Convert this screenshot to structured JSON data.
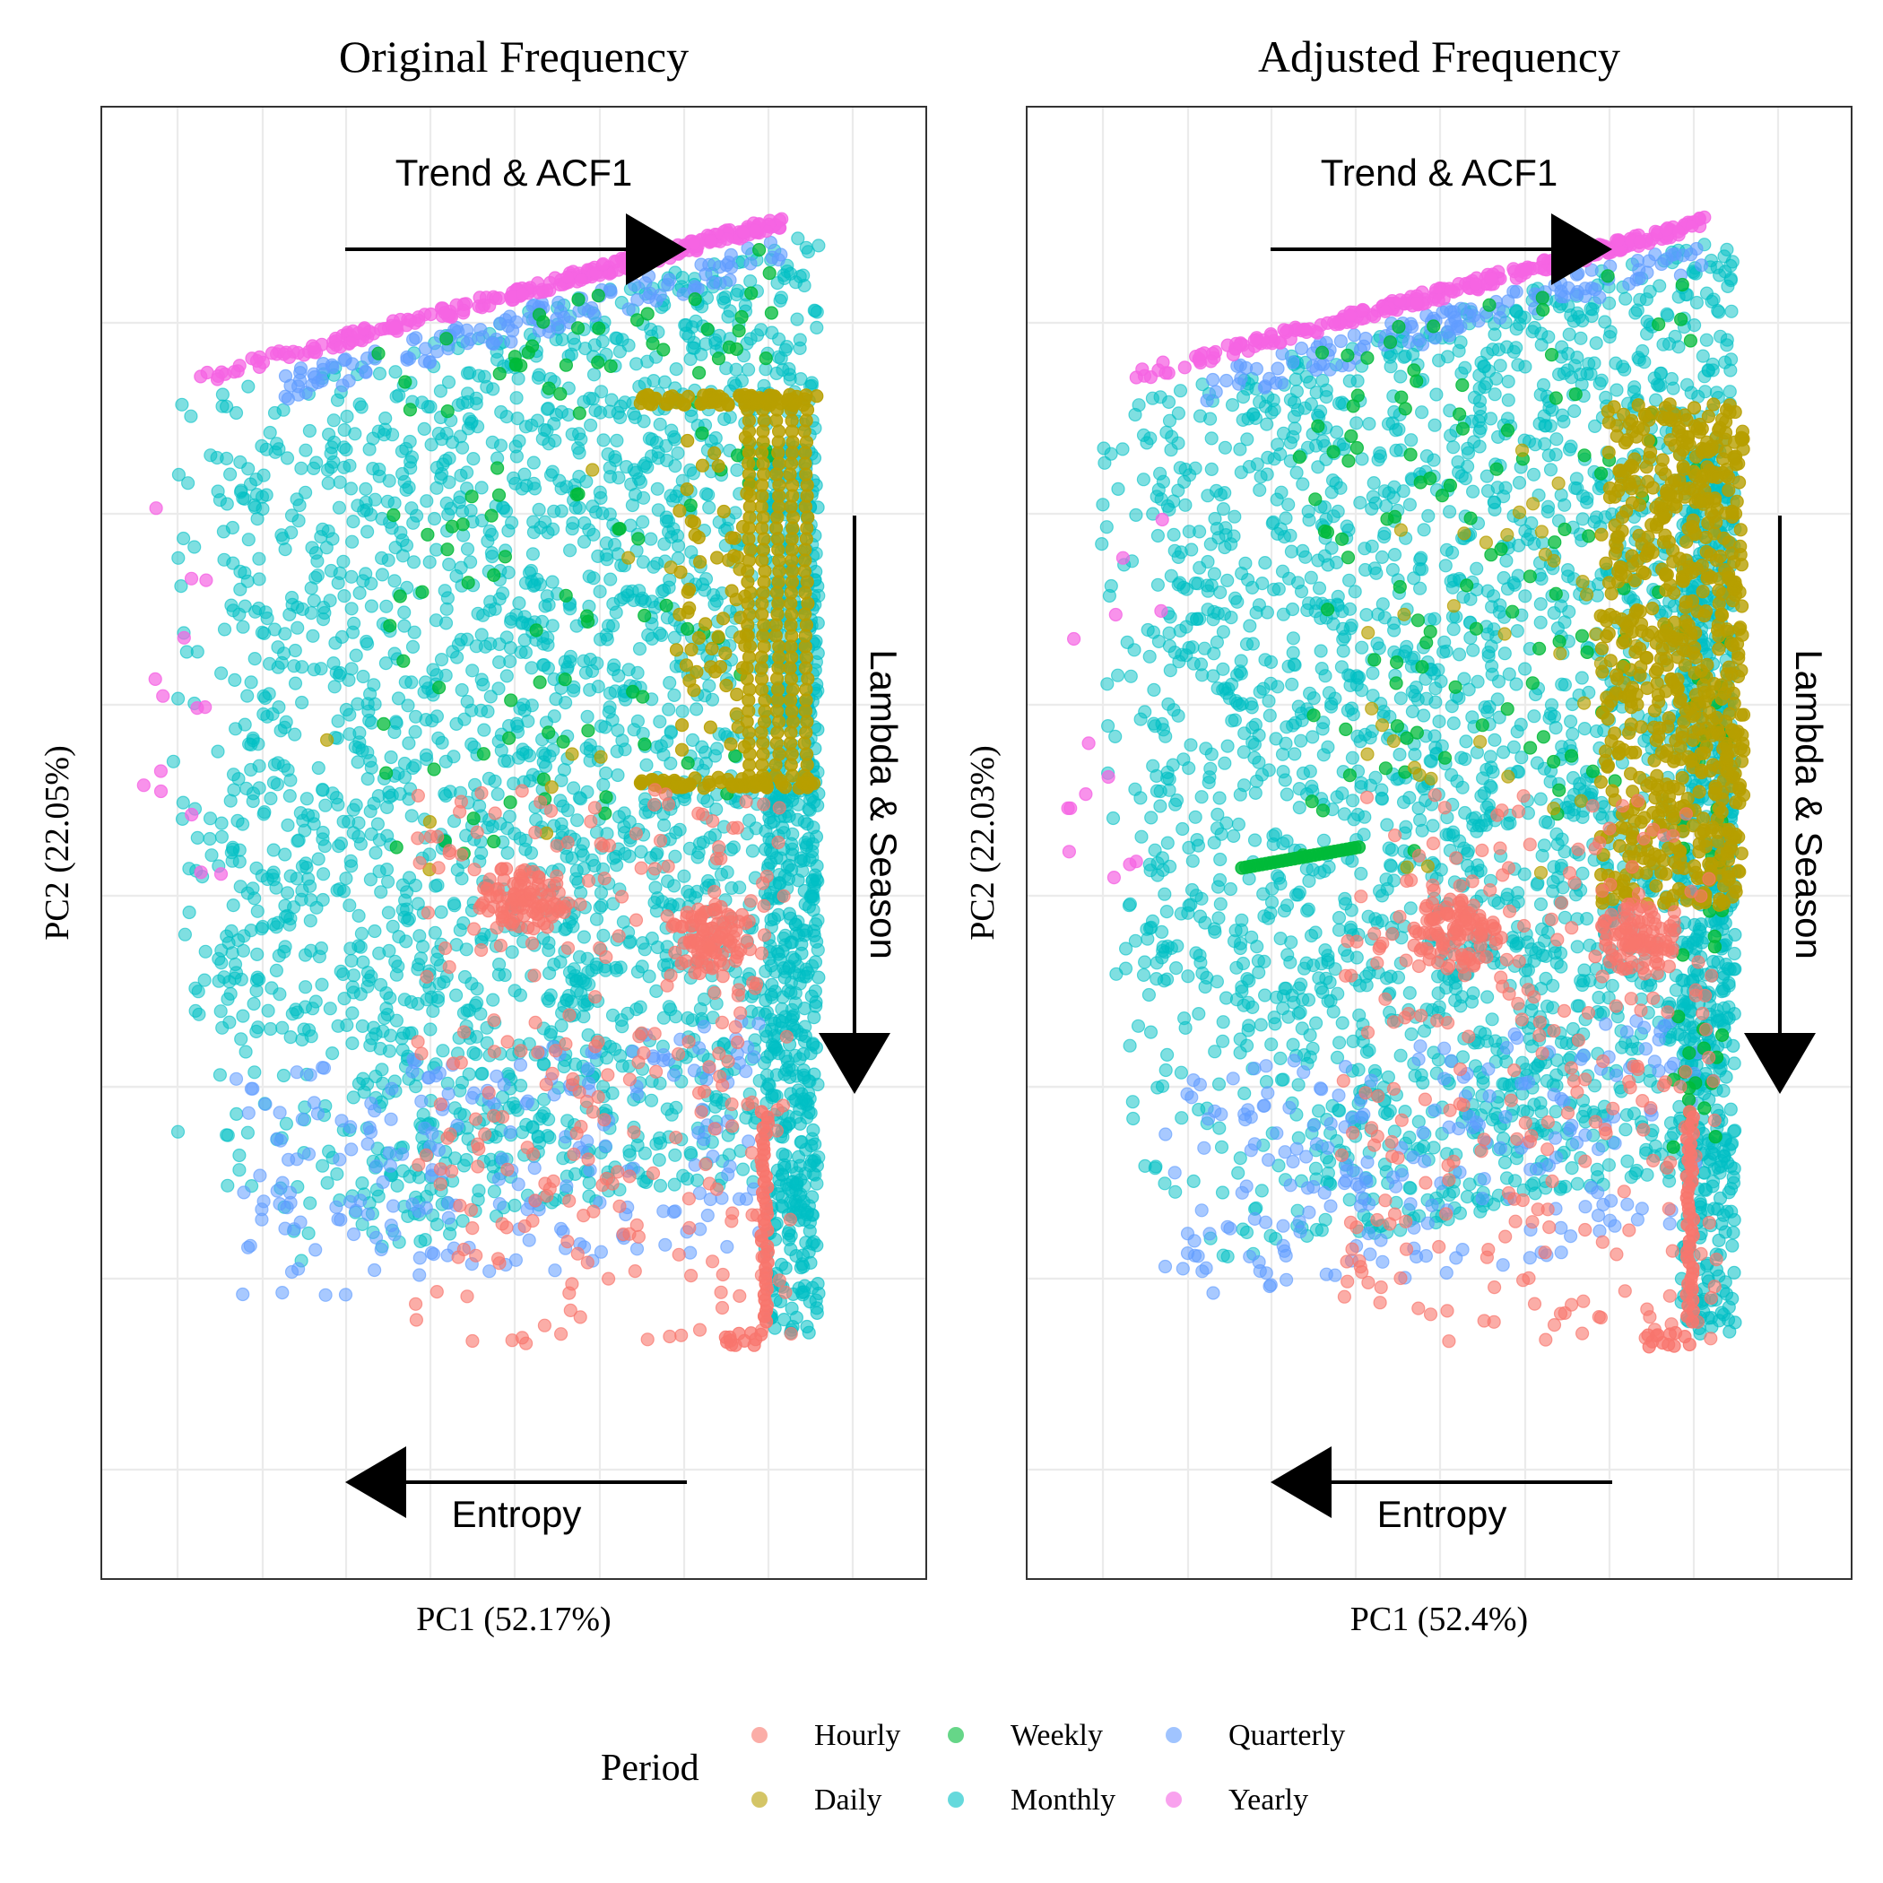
{
  "chart_data": [
    {
      "type": "scatter",
      "title": "Original Frequency",
      "xlabel": "PC1 (52.17%)",
      "ylabel": "PC2 (22.05%)",
      "grid": true,
      "legend_title": "Period",
      "annotations": [
        "Trend & ACF1",
        "Lambda & Season",
        "Entropy"
      ],
      "series": [
        {
          "name": "Hourly",
          "color": "#F8766D"
        },
        {
          "name": "Daily",
          "color": "#B79F00"
        },
        {
          "name": "Weekly",
          "color": "#00BA38"
        },
        {
          "name": "Monthly",
          "color": "#00BFC4"
        },
        {
          "name": "Quarterly",
          "color": "#619CFF"
        },
        {
          "name": "Yearly",
          "color": "#F564E3"
        }
      ]
    },
    {
      "type": "scatter",
      "title": "Adjusted Frequency",
      "xlabel": "PC1 (52.4%)",
      "ylabel": "PC2 (22.03%)",
      "grid": true,
      "legend_title": "Period",
      "annotations": [
        "Trend & ACF1",
        "Lambda & Season",
        "Entropy"
      ],
      "series": [
        {
          "name": "Hourly",
          "color": "#F8766D"
        },
        {
          "name": "Daily",
          "color": "#B79F00"
        },
        {
          "name": "Weekly",
          "color": "#00BA38"
        },
        {
          "name": "Monthly",
          "color": "#00BFC4"
        },
        {
          "name": "Quarterly",
          "color": "#619CFF"
        },
        {
          "name": "Yearly",
          "color": "#F564E3"
        }
      ]
    }
  ],
  "legend": {
    "title": "Period",
    "items": [
      {
        "label": "Hourly",
        "color": "#F8766D"
      },
      {
        "label": "Daily",
        "color": "#B79F00"
      },
      {
        "label": "Weekly",
        "color": "#00BA38"
      },
      {
        "label": "Monthly",
        "color": "#00BFC4"
      },
      {
        "label": "Quarterly",
        "color": "#619CFF"
      },
      {
        "label": "Yearly",
        "color": "#F564E3"
      }
    ]
  }
}
